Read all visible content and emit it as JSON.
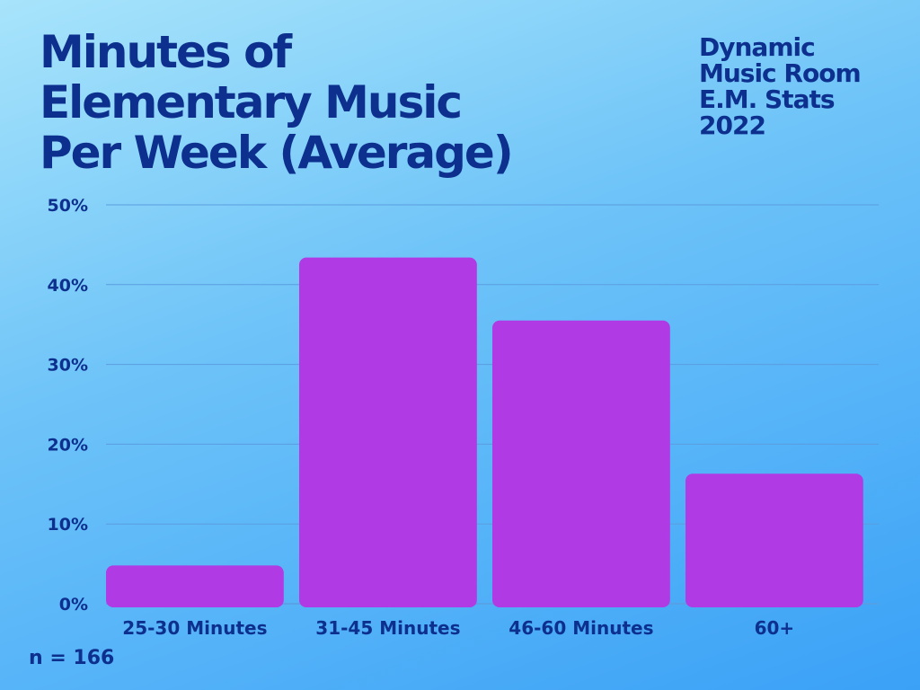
{
  "title_lines": [
    "Minutes of",
    "Elementary  Music",
    "Per Week (Average)"
  ],
  "brand_lines": [
    "Dynamic",
    "Music Room",
    "E.M. Stats",
    "2022"
  ],
  "sample_size": "n = 166",
  "colors": {
    "bar": "#b03ae3",
    "text": "#0d2f8e",
    "grid": "#5b9de0"
  },
  "chart_data": {
    "type": "bar",
    "categories": [
      "25-30 Minutes",
      "31-45 Minutes",
      "46-60 Minutes",
      "60+"
    ],
    "values": [
      4.8,
      43.4,
      35.5,
      16.3
    ],
    "ylim": [
      0,
      50
    ],
    "yticks": [
      0,
      10,
      20,
      30,
      40,
      50
    ],
    "ytick_labels": [
      "0%",
      "10%",
      "20%",
      "30%",
      "40%",
      "50%"
    ],
    "grid": true,
    "legend": "none"
  }
}
